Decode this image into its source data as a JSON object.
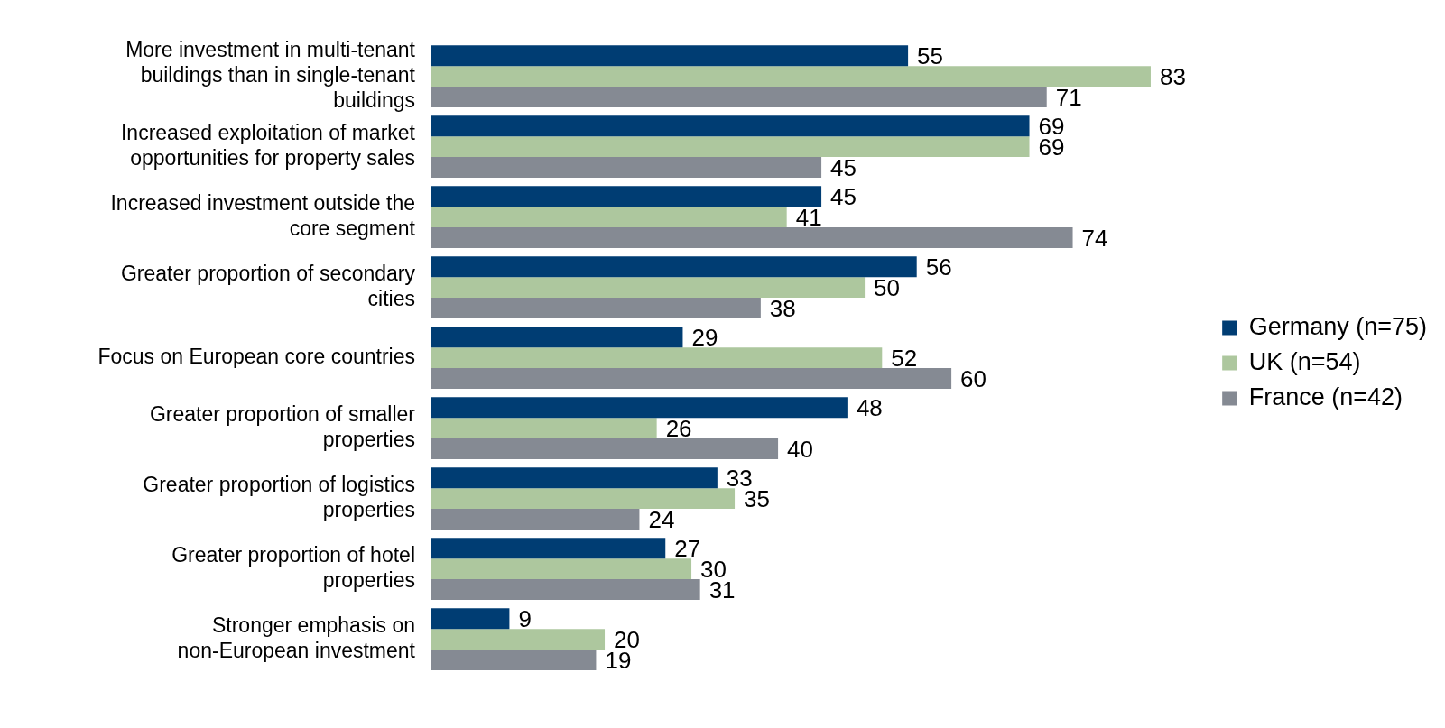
{
  "chart_data": {
    "type": "bar",
    "orientation": "horizontal",
    "categories": [
      "More investment in multi-tenant buildings than in single-tenant buildings",
      "Increased exploitation of market opportunities for property sales",
      "Increased investment outside the core segment",
      "Greater proportion of secondary cities",
      "Focus on European core countries",
      "Greater proportion of smaller properties",
      "Greater proportion of logistics properties",
      "Greater proportion of hotel properties",
      "Stronger emphasis on non-European investment"
    ],
    "series": [
      {
        "name": "Germany (n=75)",
        "color": "#003d73",
        "values": [
          55,
          69,
          45,
          56,
          29,
          48,
          33,
          27,
          9
        ]
      },
      {
        "name": "UK (n=54)",
        "color": "#adc79e",
        "values": [
          83,
          69,
          41,
          50,
          52,
          26,
          35,
          30,
          20
        ]
      },
      {
        "name": "France (n=42)",
        "color": "#858a93",
        "values": [
          71,
          45,
          74,
          38,
          60,
          40,
          24,
          31,
          19
        ]
      }
    ],
    "data_labels": true,
    "legend": "right"
  }
}
